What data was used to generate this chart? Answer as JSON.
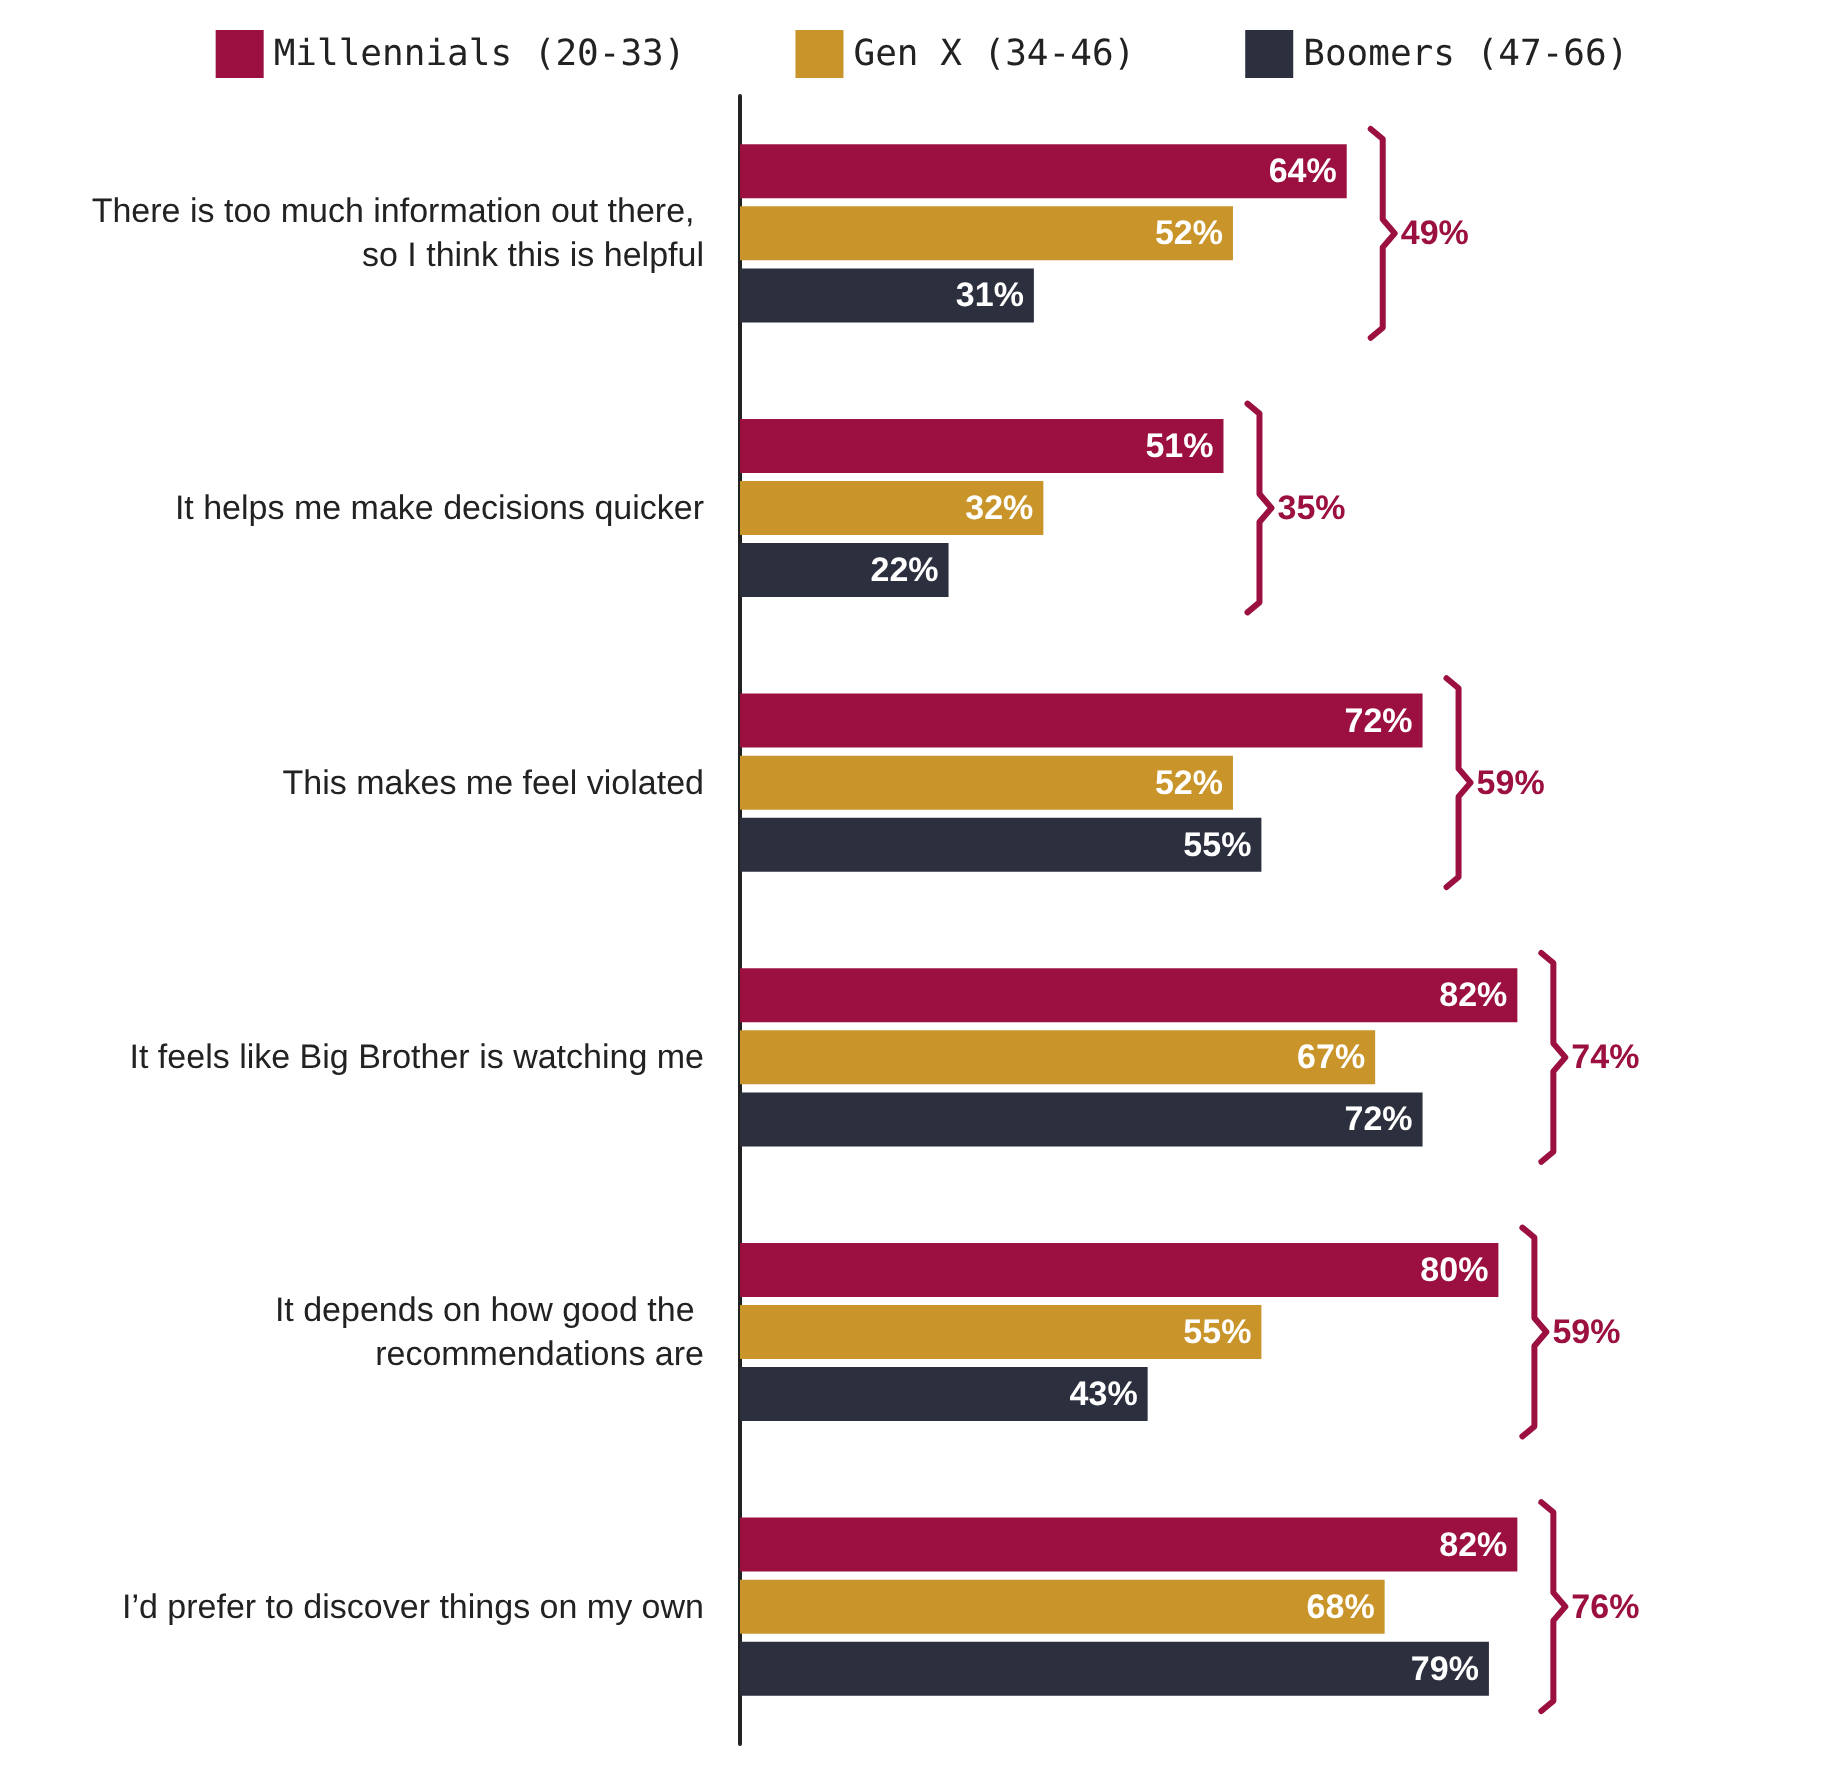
{
  "chart_data": {
    "type": "bar",
    "orientation": "horizontal",
    "categories": [
      "There is too much information out there, so I think this is helpful",
      "It helps me make decisions quicker",
      "This makes me feel violated",
      "It feels like Big Brother is watching me",
      "It depends on how good the recommendations are",
      "I’d prefer to discover things on my own"
    ],
    "series": [
      {
        "name": "Millennials (20-33)",
        "color": "#9b1040",
        "values": [
          64,
          51,
          72,
          82,
          80,
          82
        ],
        "value_labels": [
          "64%",
          "51%",
          "72%",
          "82%",
          "80%",
          "82%"
        ]
      },
      {
        "name": "Gen X (34-46)",
        "color": "#c9952a",
        "values": [
          52,
          32,
          52,
          67,
          55,
          68
        ],
        "value_labels": [
          "52%",
          "32%",
          "52%",
          "67%",
          "55%",
          "68%"
        ]
      },
      {
        "name": "Boomers (47-66)",
        "color": "#2b2f3e",
        "values": [
          31,
          22,
          55,
          72,
          43,
          79
        ],
        "value_labels": [
          "31%",
          "22%",
          "55%",
          "72%",
          "43%",
          "79%"
        ]
      }
    ],
    "annotations": [
      "49%",
      "35%",
      "59%",
      "74%",
      "59%",
      "76%"
    ],
    "legend": "top",
    "grid": false
  }
}
